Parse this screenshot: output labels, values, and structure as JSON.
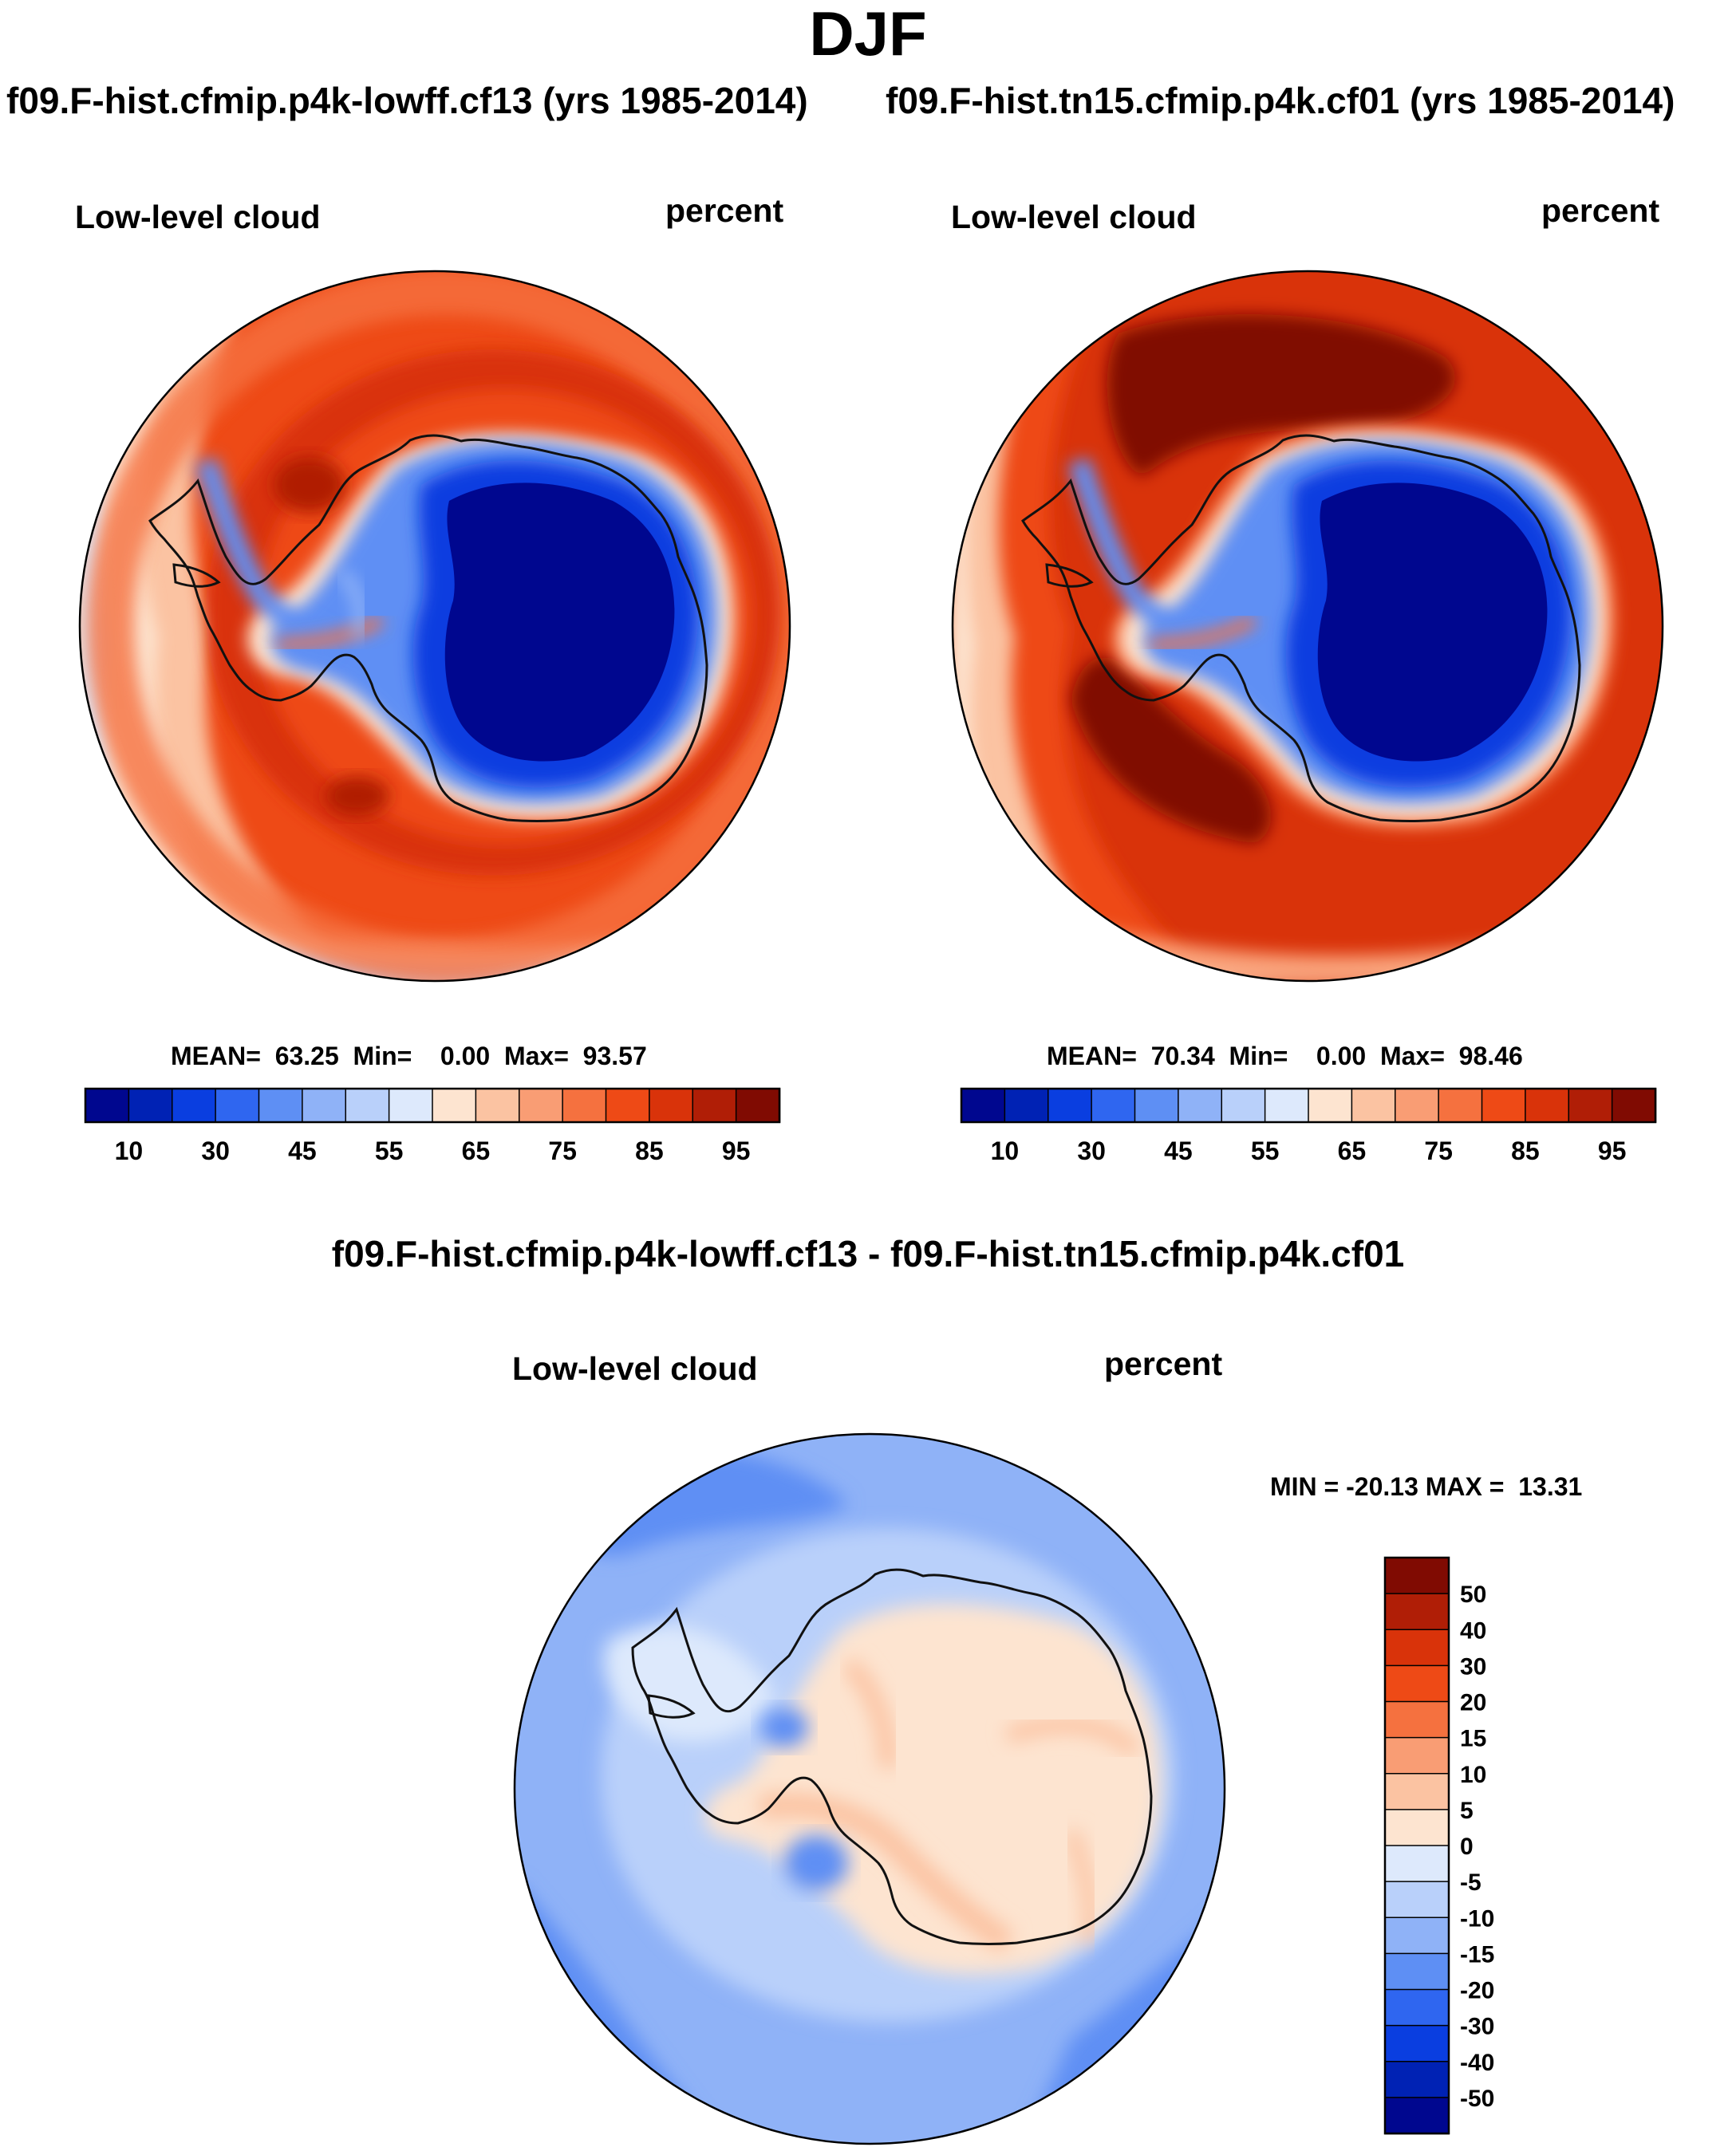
{
  "figure": {
    "title": "DJF",
    "case_left": "f09.F-hist.cfmip.p4k-lowff.cf13 (yrs 1985-2014)",
    "case_right": "f09.F-hist.tn15.cfmip.p4k.cf01 (yrs 1985-2014)",
    "diff_title": "f09.F-hist.cfmip.p4k-lowff.cf13 - f09.F-hist.tn15.cfmip.p4k.cf01"
  },
  "panels": {
    "left": {
      "variable": "Low-level cloud",
      "units": "percent",
      "stats": "MEAN=  63.25  Min=    0.00  Max=  93.57"
    },
    "right": {
      "variable": "Low-level cloud",
      "units": "percent",
      "stats": "MEAN=  70.34  Min=    0.00  Max=  98.46"
    },
    "diff": {
      "variable": "Low-level cloud",
      "units": "percent",
      "stats": "MIN = -20.13 MAX =  13.31"
    }
  },
  "colors": {
    "coast": "#111111",
    "map_border": "#000000",
    "abs_scale": [
      "#00078f",
      "#0022b4",
      "#0a3ee0",
      "#2f66f0",
      "#5e8ff4",
      "#8fb2f7",
      "#b9d0fa",
      "#dde9fc",
      "#fde4d0",
      "#fbc3a2",
      "#f99d74",
      "#f5713f",
      "#ee4a16",
      "#d9330a",
      "#b01e06",
      "#800b02"
    ],
    "diff_scale": [
      "#00078f",
      "#0022b4",
      "#0a3ee0",
      "#2f66f0",
      "#5e8ff4",
      "#8fb2f7",
      "#b9d0fa",
      "#dde9fc",
      "#fde4d0",
      "#fbc3a2",
      "#f99d74",
      "#f5713f",
      "#ee4a16",
      "#d9330a",
      "#b01e06",
      "#800b02"
    ]
  },
  "chart_data": [
    {
      "type": "heatmap",
      "projection": "south polar stereographic",
      "title": "Low-level cloud",
      "units": "percent",
      "case": "f09.F-hist.cfmip.p4k-lowff.cf13 (yrs 1985-2014)",
      "season": "DJF",
      "mean": 63.25,
      "min": 0.0,
      "max": 93.57,
      "levels": [
        10,
        20,
        30,
        40,
        45,
        50,
        55,
        60,
        65,
        70,
        75,
        80,
        85,
        90,
        95
      ],
      "colorbar_labels": [
        "10",
        "30",
        "45",
        "55",
        "65",
        "75",
        "85",
        "95"
      ],
      "colorbar_orientation": "horizontal"
    },
    {
      "type": "heatmap",
      "projection": "south polar stereographic",
      "title": "Low-level cloud",
      "units": "percent",
      "case": "f09.F-hist.tn15.cfmip.p4k.cf01 (yrs 1985-2014)",
      "season": "DJF",
      "mean": 70.34,
      "min": 0.0,
      "max": 98.46,
      "levels": [
        10,
        20,
        30,
        40,
        45,
        50,
        55,
        60,
        65,
        70,
        75,
        80,
        85,
        90,
        95
      ],
      "colorbar_labels": [
        "10",
        "30",
        "45",
        "55",
        "65",
        "75",
        "85",
        "95"
      ],
      "colorbar_orientation": "horizontal"
    },
    {
      "type": "heatmap",
      "projection": "south polar stereographic",
      "title": "Low-level cloud",
      "units": "percent",
      "case": "f09.F-hist.cfmip.p4k-lowff.cf13 - f09.F-hist.tn15.cfmip.p4k.cf01",
      "season": "DJF",
      "min": -20.13,
      "max": 13.31,
      "levels": [
        -50,
        -40,
        -30,
        -20,
        -15,
        -10,
        -5,
        0,
        5,
        10,
        15,
        20,
        30,
        40,
        50
      ],
      "colorbar_labels": [
        "50",
        "40",
        "30",
        "20",
        "15",
        "10",
        "5",
        "0",
        "-5",
        "-10",
        "-15",
        "-20",
        "-30",
        "-40",
        "-50"
      ],
      "colorbar_orientation": "vertical"
    }
  ]
}
